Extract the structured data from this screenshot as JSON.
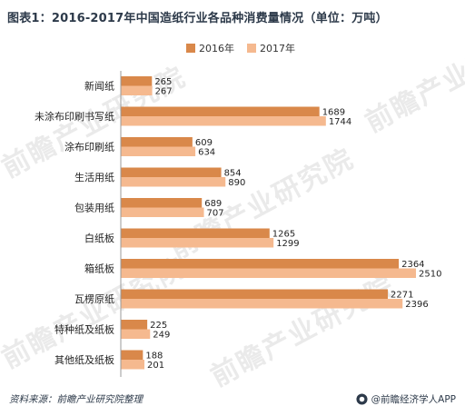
{
  "header": {
    "title": "图表1：2016-2017年中国造纸行业各品种消费量情况（单位：万吨）"
  },
  "footer": {
    "source": "资料来源：前瞻产业研究院整理",
    "app_label": "@前瞻经济学人APP"
  },
  "watermark": {
    "text": "前瞻产业研究院"
  },
  "colors": {
    "series_2016": "#d9884a",
    "series_2017": "#f5b98f",
    "title": "#2d3a4a",
    "watermark": "#a0a0a0"
  },
  "chart_data": {
    "type": "bar",
    "orientation": "horizontal",
    "title": "图表1：2016-2017年中国造纸行业各品种消费量情况（单位：万吨）",
    "categories": [
      "新闻纸",
      "未涂布印刷书写纸",
      "涂布印刷纸",
      "生活用纸",
      "包装用纸",
      "白纸板",
      "箱纸板",
      "瓦楞原纸",
      "特种纸及纸板",
      "其他纸及纸板"
    ],
    "series": [
      {
        "name": "2016年",
        "values": [
          265,
          1689,
          609,
          854,
          689,
          1265,
          2364,
          2271,
          225,
          188
        ]
      },
      {
        "name": "2017年",
        "values": [
          267,
          1744,
          634,
          890,
          707,
          1299,
          2510,
          2396,
          249,
          201
        ]
      }
    ],
    "xlim": [
      0,
      2510
    ],
    "legend_position": "top",
    "grid": false,
    "data_labels": true
  }
}
